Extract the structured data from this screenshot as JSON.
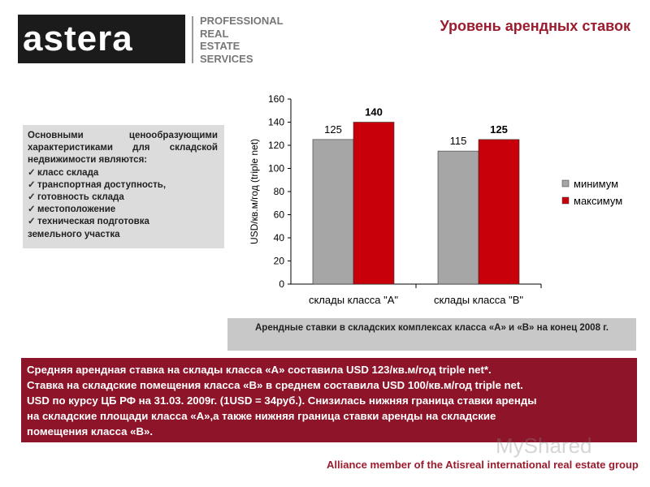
{
  "brand": {
    "logo_text": "astera",
    "tagline": [
      "PROFESSIONAL",
      "REAL",
      "ESTATE",
      "SERVICES"
    ]
  },
  "page_title": "Уровень арендных ставок",
  "features": {
    "intro": "Основными ценообразующими характеристиками для складской недвижимости являются:",
    "items": [
      "класс склада",
      "транспортная доступность,",
      "готовность склада",
      "местоположение",
      "техническая подготовка"
    ],
    "tail": "земельного участка"
  },
  "chart_data": {
    "type": "bar",
    "categories": [
      "склады класса \"А\"",
      "склады класса \"В\""
    ],
    "series": [
      {
        "name": "минимум",
        "values": [
          125,
          115
        ],
        "color": "#a6a6a6"
      },
      {
        "name": "максимум",
        "values": [
          140,
          125
        ],
        "color": "#c8000a"
      }
    ],
    "data_labels": [
      [
        "125",
        "115"
      ],
      [
        "140",
        "125"
      ]
    ],
    "ylabel": "USD/кв.м/год (triple net)",
    "ylim": [
      0,
      160
    ],
    "yticks": [
      0,
      20,
      40,
      60,
      80,
      100,
      120,
      140,
      160
    ],
    "legend_position": "right",
    "grid": false
  },
  "caption": "Арендные ставки в складских комплексах класса «А» и «В» на конец 2008 г.",
  "summary_lines": [
    "Средняя арендная ставка на склады класса «А» составила USD 123/кв.м/год triple net*.",
    "Ставка на складские помещения класса «В» в среднем составила USD 100/кв.м/год triple net.",
    "USD по курсу ЦБ РФ на 31.03. 2009г. (1USD = 34руб.). Снизилась нижняя граница ставки аренды",
    "на складские площади класса «А»,а также нижняя граница ставки аренды на складские",
    "помещения класса «В»."
  ],
  "footer": "Alliance member of the Atisreal international real estate group",
  "watermark": "MyShared"
}
